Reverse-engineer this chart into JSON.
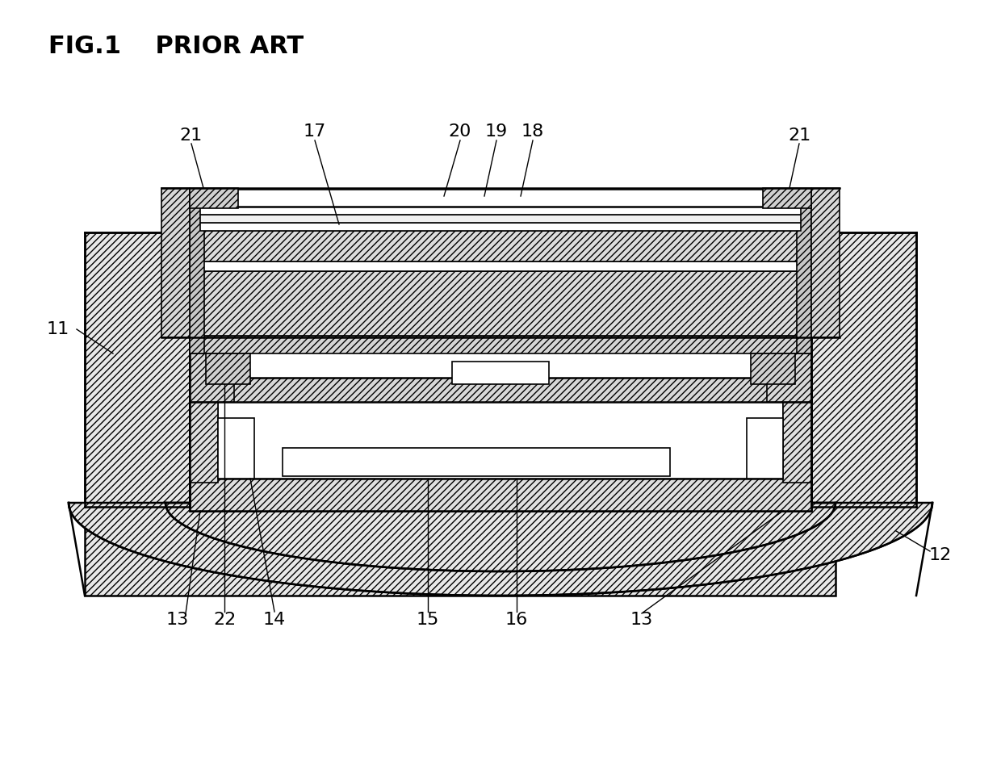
{
  "title": "FIG.1    PRIOR ART",
  "bg_color": "#ffffff",
  "line_color": "#000000",
  "label_fontsize": 16,
  "title_fontsize": 22
}
